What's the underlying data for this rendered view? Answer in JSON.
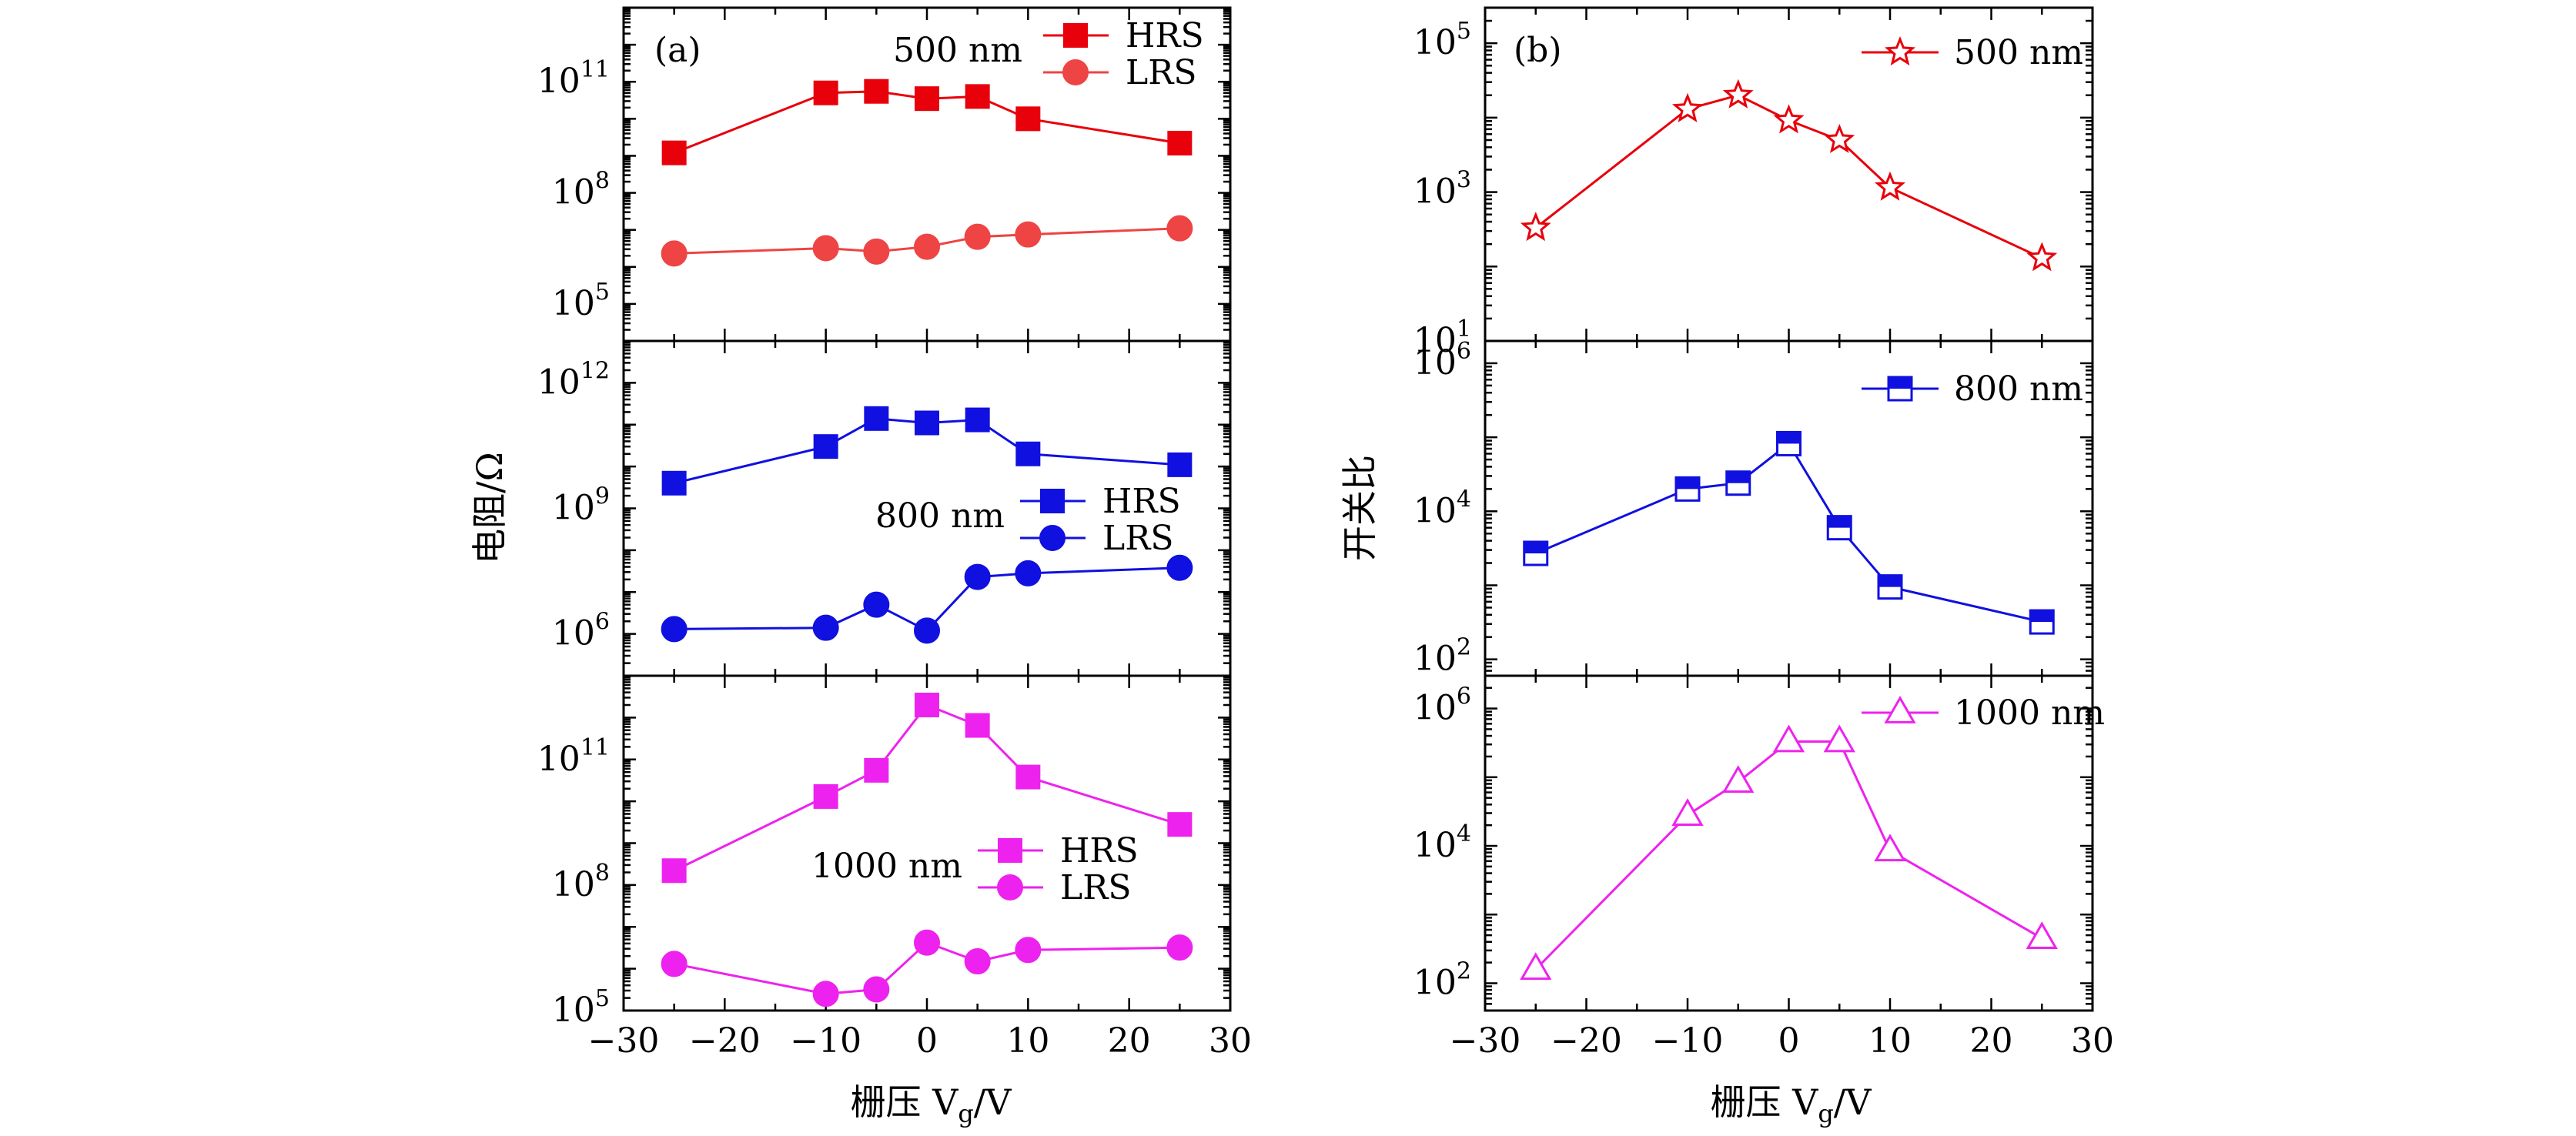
{
  "figure": {
    "xlabel_left": "栅压 V",
    "xlabel_left_sub": "g",
    "xlabel_left_unit": "/V",
    "xlabel_right": "栅压 V",
    "xlabel_right_sub": "g",
    "xlabel_right_unit": "/V",
    "ylabel_left": "电阻/Ω",
    "ylabel_right": "开关比",
    "panel_a": "(a)",
    "panel_b": "(b)",
    "x_ticks": [
      "−30",
      "−20",
      "−10",
      "0",
      "10",
      "20",
      "30"
    ]
  },
  "colors": {
    "red": "#e8000b",
    "red_light": "#ee4444",
    "blue": "#1010e0",
    "magenta": "#ee22ee"
  },
  "chart_data": [
    {
      "type": "line",
      "panel": "a-top",
      "label": "500 nm",
      "x": [
        -25,
        -10,
        -5,
        0,
        5,
        10,
        25
      ],
      "xlim": [
        -30,
        30
      ],
      "yscale": "log",
      "ylim": [
        10000.0,
        10000000000000.0
      ],
      "y_ticks": [
        {
          "base": "10",
          "exp": "5",
          "v": 100000.0
        },
        {
          "base": "10",
          "exp": "8",
          "v": 100000000.0
        },
        {
          "base": "10",
          "exp": "11",
          "v": 100000000000.0
        }
      ],
      "series": [
        {
          "name": "HRS",
          "marker": "square",
          "color": "#e8000b",
          "values": [
            1200000000.0,
            50000000000.0,
            55000000000.0,
            35000000000.0,
            40000000000.0,
            10000000000.0,
            2200000000.0
          ]
        },
        {
          "name": "LRS",
          "marker": "circle",
          "color": "#ee4444",
          "values": [
            2300000.0,
            3200000.0,
            2600000.0,
            3500000.0,
            6500000.0,
            7500000.0,
            11000000.0
          ]
        }
      ],
      "legend": "top-right"
    },
    {
      "type": "line",
      "panel": "a-mid",
      "label": "800 nm",
      "x": [
        -25,
        -10,
        -5,
        0,
        5,
        10,
        25
      ],
      "xlim": [
        -30,
        30
      ],
      "yscale": "log",
      "ylim": [
        100000.0,
        10000000000000.0
      ],
      "y_ticks": [
        {
          "base": "10",
          "exp": "6",
          "v": 1000000.0
        },
        {
          "base": "10",
          "exp": "9",
          "v": 1000000000.0
        },
        {
          "base": "10",
          "exp": "12",
          "v": 1000000000000.0
        }
      ],
      "series": [
        {
          "name": "HRS",
          "marker": "square",
          "color": "#1010e0",
          "values": [
            4000000000.0,
            30000000000.0,
            140000000000.0,
            110000000000.0,
            130000000000.0,
            20000000000.0,
            11000000000.0
          ]
        },
        {
          "name": "LRS",
          "marker": "circle",
          "color": "#1010e0",
          "values": [
            1300000.0,
            1400000.0,
            5000000.0,
            1200000.0,
            23000000.0,
            28000000.0,
            38000000.0
          ]
        }
      ],
      "legend": "center-right"
    },
    {
      "type": "line",
      "panel": "a-bot",
      "label": "1000 nm",
      "x": [
        -25,
        -10,
        -5,
        0,
        5,
        10,
        25
      ],
      "xlim": [
        -30,
        30
      ],
      "yscale": "log",
      "ylim": [
        100000.0,
        10000000000000.0
      ],
      "y_ticks": [
        {
          "base": "10",
          "exp": "5",
          "v": 100000.0
        },
        {
          "base": "10",
          "exp": "8",
          "v": 100000000.0
        },
        {
          "base": "10",
          "exp": "11",
          "v": 100000000000.0
        }
      ],
      "series": [
        {
          "name": "HRS",
          "marker": "square",
          "color": "#ee22ee",
          "values": [
            220000000.0,
            13000000000.0,
            55000000000.0,
            2000000000000.0,
            650000000000.0,
            38000000000.0,
            2800000000.0
          ]
        },
        {
          "name": "LRS",
          "marker": "circle",
          "color": "#ee22ee",
          "values": [
            1300000.0,
            250000.0,
            320000.0,
            4200000.0,
            1500000.0,
            2800000.0,
            3200000.0
          ]
        }
      ],
      "legend": "bottom-right"
    },
    {
      "type": "line",
      "panel": "b-top",
      "label": "500 nm",
      "x": [
        -25,
        -10,
        -5,
        0,
        5,
        10,
        25
      ],
      "xlim": [
        -30,
        30
      ],
      "yscale": "log",
      "ylim": [
        10,
        300000.0
      ],
      "y_ticks": [
        {
          "base": "10",
          "exp": "1",
          "v": 10
        },
        {
          "base": "10",
          "exp": "3",
          "v": 1000
        },
        {
          "base": "10",
          "exp": "5",
          "v": 100000
        }
      ],
      "series": [
        {
          "name": "500 nm",
          "marker": "star",
          "color": "#e8000b",
          "values": [
            330,
            13000,
            20000,
            9200,
            5000,
            1150,
            130
          ]
        }
      ],
      "legend": "top-right"
    },
    {
      "type": "line",
      "panel": "b-mid",
      "label": "800 nm",
      "x": [
        -25,
        -10,
        -5,
        0,
        5,
        10,
        25
      ],
      "xlim": [
        -30,
        30
      ],
      "yscale": "log",
      "ylim": [
        60,
        2000000.0
      ],
      "y_ticks": [
        {
          "base": "10",
          "exp": "2",
          "v": 100
        },
        {
          "base": "10",
          "exp": "4",
          "v": 10000
        },
        {
          "base": "10",
          "exp": "6",
          "v": 1000000
        }
      ],
      "series": [
        {
          "name": "800 nm",
          "marker": "half-square",
          "color": "#1010e0",
          "values": [
            2700,
            20000,
            24000,
            82000,
            6000,
            950,
            320
          ]
        }
      ],
      "legend": "top-right"
    },
    {
      "type": "line",
      "panel": "b-bot",
      "label": "1000 nm",
      "x": [
        -25,
        -10,
        -5,
        0,
        5,
        10,
        25
      ],
      "xlim": [
        -30,
        30
      ],
      "yscale": "log",
      "ylim": [
        40,
        3000000.0
      ],
      "y_ticks": [
        {
          "base": "10",
          "exp": "2",
          "v": 100
        },
        {
          "base": "10",
          "exp": "4",
          "v": 10000
        },
        {
          "base": "10",
          "exp": "6",
          "v": 1000000
        }
      ],
      "series": [
        {
          "name": "1000 nm",
          "marker": "triangle",
          "color": "#ee22ee",
          "values": [
            160,
            28000,
            85000,
            330000,
            330000,
            8500,
            450
          ]
        }
      ],
      "legend": "top-right"
    }
  ]
}
